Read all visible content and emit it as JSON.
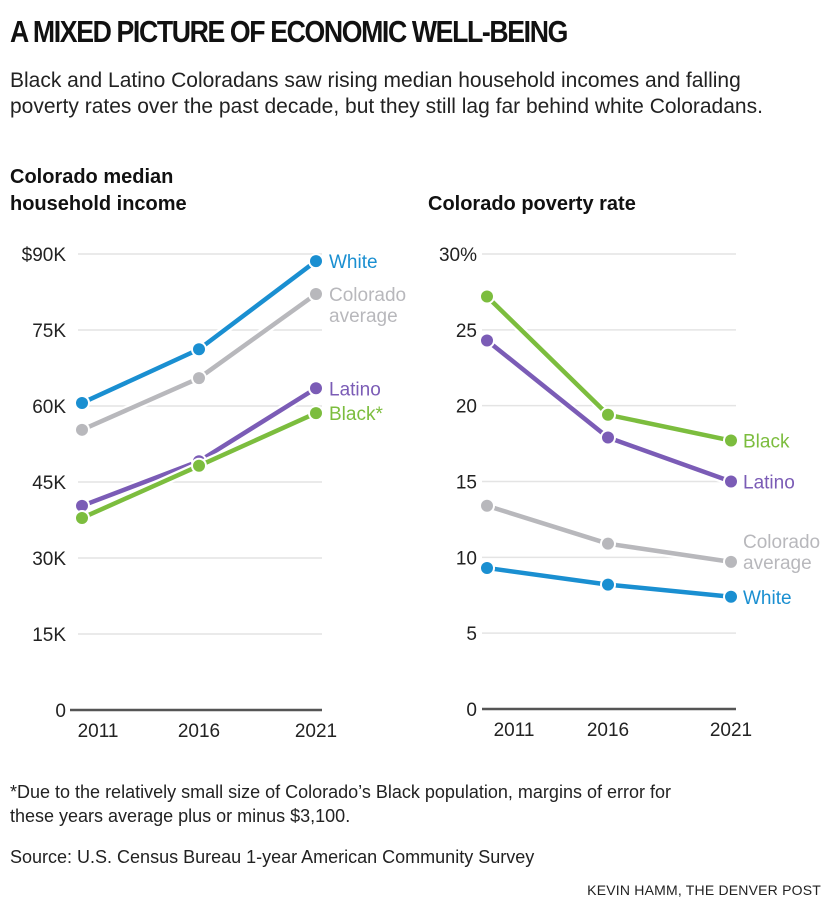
{
  "title": "A MIXED PICTURE OF ECONOMIC WELL-BEING",
  "subtitle": "Black and Latino Coloradans saw rising median household incomes and falling poverty rates over the past decade, but they still lag far behind white Coloradans.",
  "footnote": "*Due to the relatively small size of Colorado’s Black population, margins of error for these years average plus or minus $3,100.",
  "source": "Source: U.S. Census Bureau 1-year American Community Survey",
  "credit": "KEVIN HAMM, THE DENVER POST",
  "colors": {
    "white": "#1a8fd1",
    "colorado_average": "#b8b8bc",
    "latino": "#7b5cb6",
    "black": "#7cbd3e",
    "grid": "#e4e4e4",
    "axis": "#555555"
  },
  "chart_data": [
    {
      "type": "line",
      "title": "Colorado median household income",
      "title_lines": [
        "Colorado median",
        "household income"
      ],
      "xlabel": "",
      "ylabel": "",
      "x": [
        "2011",
        "2016",
        "2021"
      ],
      "ylim": [
        0,
        90000
      ],
      "yticks": [
        0,
        15000,
        30000,
        45000,
        60000,
        75000,
        90000
      ],
      "ytick_labels": [
        "0",
        "15K",
        "30K",
        "45K",
        "60K",
        "75K",
        "$90K"
      ],
      "grid": true,
      "series": [
        {
          "name": "White",
          "key": "white",
          "label_lines": [
            "White"
          ],
          "values": [
            60600,
            71200,
            88600
          ]
        },
        {
          "name": "Colorado average",
          "key": "colorado_average",
          "label_lines": [
            "Colorado",
            "average"
          ],
          "values": [
            55300,
            65500,
            82100
          ]
        },
        {
          "name": "Latino",
          "key": "latino",
          "label_lines": [
            "Latino"
          ],
          "values": [
            40300,
            49100,
            63500
          ]
        },
        {
          "name": "Black*",
          "key": "black",
          "label_lines": [
            "Black*"
          ],
          "values": [
            37900,
            48200,
            58600
          ]
        }
      ]
    },
    {
      "type": "line",
      "title": "Colorado poverty rate",
      "title_lines": [
        "Colorado poverty rate"
      ],
      "xlabel": "",
      "ylabel": "",
      "x": [
        "2011",
        "2016",
        "2021"
      ],
      "ylim": [
        0,
        30
      ],
      "yticks": [
        0,
        5,
        10,
        15,
        20,
        25,
        30
      ],
      "ytick_labels": [
        "0",
        "5",
        "10",
        "15",
        "20",
        "25",
        "30%"
      ],
      "grid": true,
      "series": [
        {
          "name": "Black",
          "key": "black",
          "label_lines": [
            "Black"
          ],
          "values": [
            27.2,
            19.4,
            17.7
          ]
        },
        {
          "name": "Latino",
          "key": "latino",
          "label_lines": [
            "Latino"
          ],
          "values": [
            24.3,
            17.9,
            15.0
          ]
        },
        {
          "name": "Colorado average",
          "key": "colorado_average",
          "label_lines": [
            "Colorado",
            "average"
          ],
          "values": [
            13.4,
            10.9,
            9.7
          ]
        },
        {
          "name": "White",
          "key": "white",
          "label_lines": [
            "White"
          ],
          "values": [
            9.3,
            8.2,
            7.4
          ]
        }
      ]
    }
  ]
}
